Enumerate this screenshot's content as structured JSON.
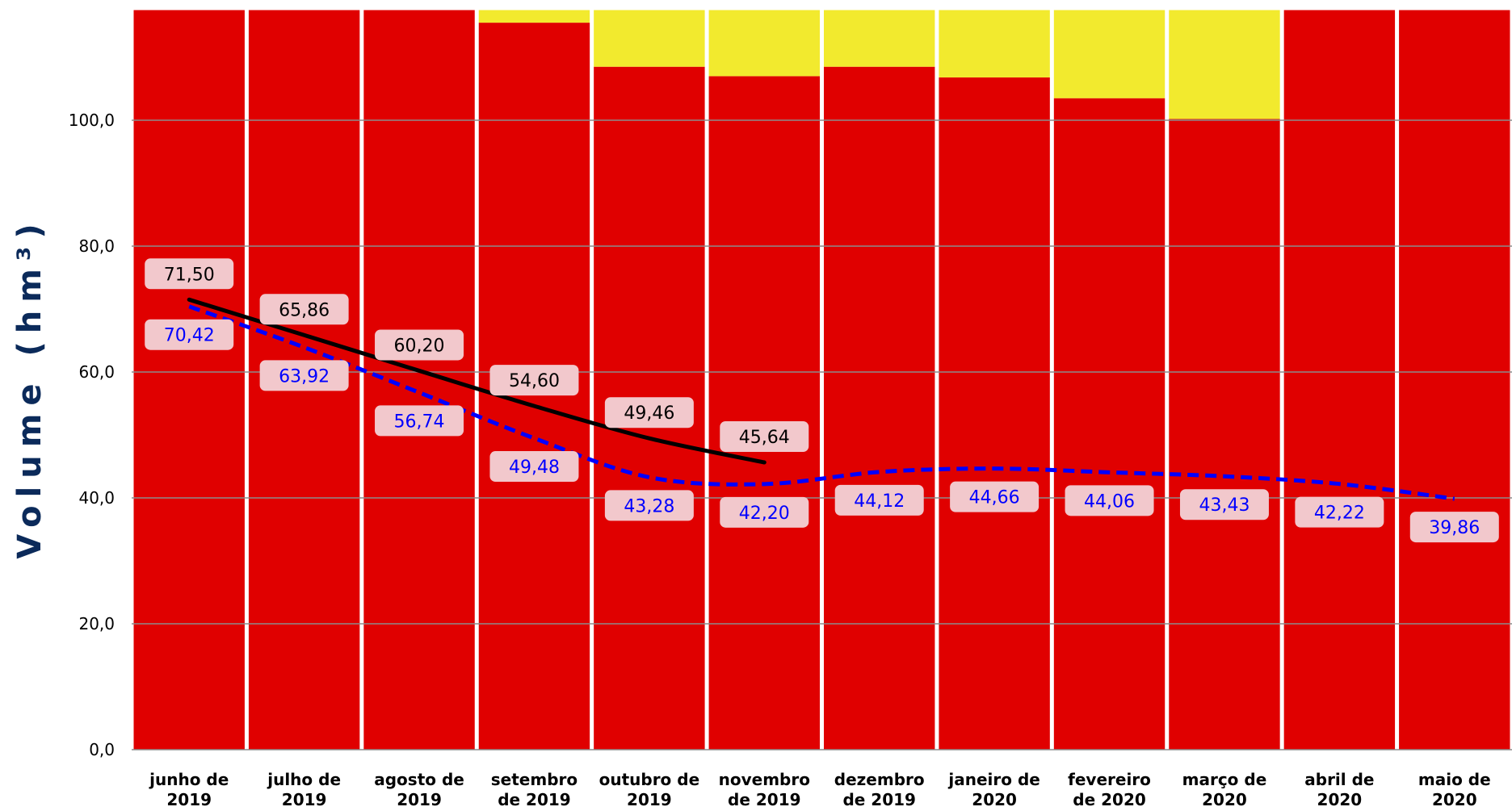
{
  "chart_data": {
    "type": "bar",
    "ylabel": "Volume (hm³)",
    "ylim": [
      0,
      120
    ],
    "yticks": [
      0,
      20,
      40,
      60,
      80,
      100
    ],
    "ytick_labels": [
      "0,0",
      "20,0",
      "40,0",
      "60,0",
      "80,0",
      "100,0"
    ],
    "grid": true,
    "categories": [
      [
        "junho de",
        "2019"
      ],
      [
        "julho de",
        "2019"
      ],
      [
        "agosto de",
        "2019"
      ],
      [
        "setembro",
        "de 2019"
      ],
      [
        "outubro de",
        "2019"
      ],
      [
        "novembro",
        "de 2019"
      ],
      [
        "dezembro",
        "de 2019"
      ],
      [
        "janeiro de",
        "2020"
      ],
      [
        "fevereiro",
        "de 2020"
      ],
      [
        "março de",
        "2020"
      ],
      [
        "abril de",
        "2020"
      ],
      [
        "maio de",
        "2020"
      ]
    ],
    "bands": [
      {
        "color": "#e00000",
        "values": [
          117.5,
          117.5,
          117.5,
          115.5,
          108.5,
          107.0,
          108.5,
          106.8,
          103.5,
          100.2,
          117.5,
          117.5
        ]
      },
      {
        "color": "#f2ea2e",
        "values": [
          0,
          0,
          0,
          2.0,
          9.0,
          10.5,
          9.0,
          10.7,
          14.0,
          17.3,
          0,
          0
        ]
      }
    ],
    "series": [
      {
        "color": "#000000",
        "style": "solid",
        "values": [
          71.5,
          65.86,
          60.2,
          54.6,
          49.46,
          45.64,
          null,
          null,
          null,
          null,
          null,
          null
        ],
        "labels": [
          "71,50",
          "65,86",
          "60,20",
          "54,60",
          "49,46",
          "45,64"
        ]
      },
      {
        "color": "#0000ff",
        "style": "dashed",
        "values": [
          70.42,
          63.92,
          56.74,
          49.48,
          43.28,
          42.2,
          44.12,
          44.66,
          44.06,
          43.43,
          42.22,
          39.86
        ],
        "labels": [
          "70,42",
          "63,92",
          "56,74",
          "49,48",
          "43,28",
          "42,20",
          "44,12",
          "44,66",
          "44,06",
          "43,43",
          "42,22",
          "39,86"
        ]
      }
    ]
  }
}
